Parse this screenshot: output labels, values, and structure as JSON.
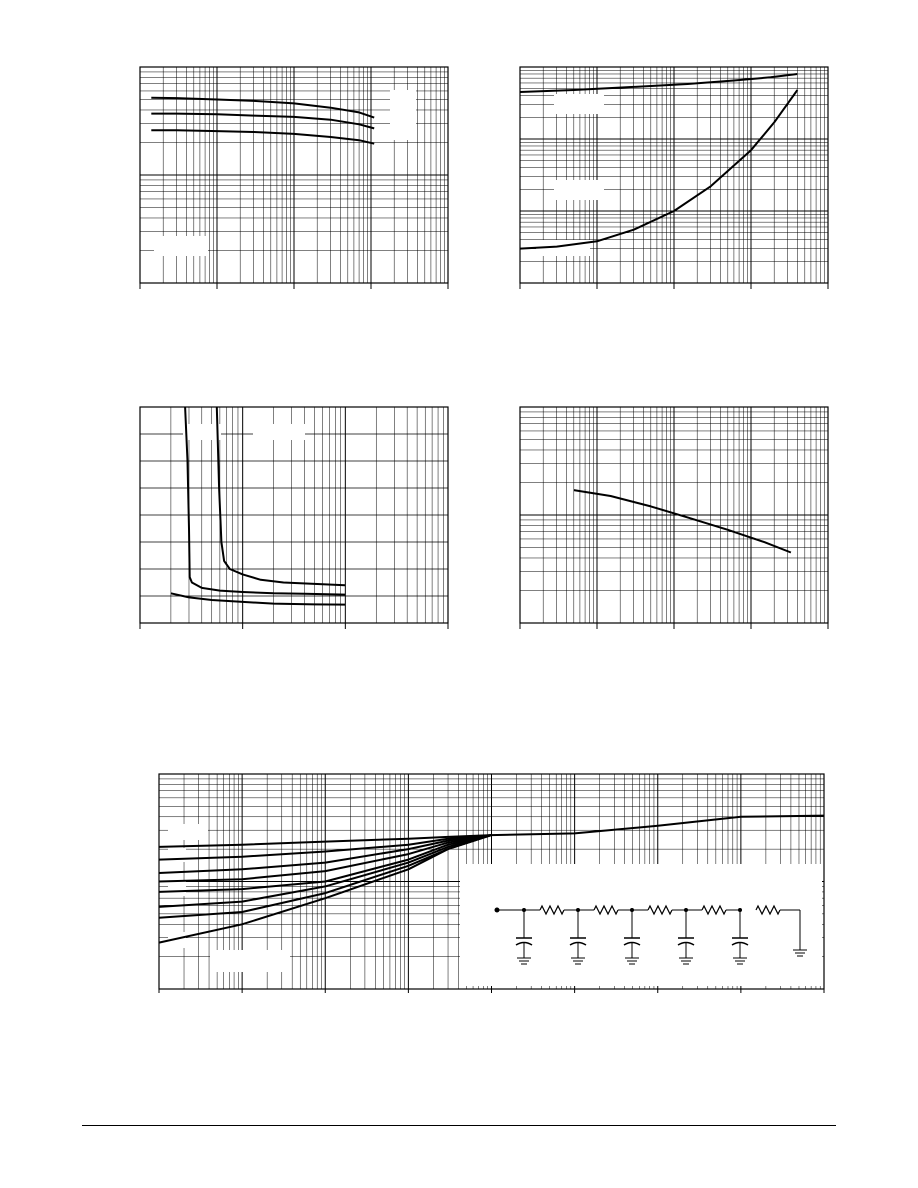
{
  "colors": {
    "ink": "#000000",
    "background": "#ffffff"
  },
  "chart_data": [
    {
      "id": "chart-top-left",
      "type": "line",
      "x_scale": "log",
      "xlim": [
        1,
        10000
      ],
      "y_scale": "log",
      "ylim": [
        1,
        100
      ],
      "grid": true,
      "series": [
        {
          "x": [
            1.4,
            3,
            10,
            30,
            100,
            300,
            700,
            1100
          ],
          "y": [
            52,
            51.5,
            50,
            48.5,
            46,
            42,
            38,
            34
          ]
        },
        {
          "x": [
            1.4,
            3,
            10,
            30,
            100,
            300,
            700,
            1100
          ],
          "y": [
            37,
            37,
            36.5,
            35.5,
            34.5,
            32.5,
            29.5,
            27
          ]
        },
        {
          "x": [
            1.4,
            3,
            10,
            30,
            100,
            300,
            700,
            1100
          ],
          "y": [
            26,
            26,
            25.5,
            25,
            24,
            22.5,
            21,
            19.5
          ]
        }
      ]
    },
    {
      "id": "chart-top-right",
      "type": "line",
      "x_scale": "log",
      "xlim": [
        1,
        10000
      ],
      "y_scale": "log",
      "ylim": [
        1,
        1000
      ],
      "grid": true,
      "series": [
        {
          "x": [
            1,
            5,
            30,
            150,
            600,
            1800,
            4000
          ],
          "y": [
            450,
            480,
            530,
            580,
            650,
            720,
            800
          ]
        },
        {
          "x": [
            1,
            3,
            10,
            30,
            100,
            300,
            1000,
            2000,
            4000
          ],
          "y": [
            3,
            3.2,
            3.8,
            5.5,
            10,
            22,
            70,
            170,
            480
          ]
        }
      ]
    },
    {
      "id": "chart-middle-left",
      "type": "line",
      "x_scale": "log",
      "xlim": [
        1,
        1000
      ],
      "y_scale": "linear",
      "ylim": [
        0,
        8
      ],
      "grid": true,
      "series": [
        {
          "x": [
            2.75,
            2.9,
            3,
            3.05,
            3.2,
            4,
            6,
            10,
            20,
            40,
            100
          ],
          "y": [
            8,
            6,
            3.5,
            1.7,
            1.5,
            1.3,
            1.2,
            1.15,
            1.1,
            1.08,
            1.05
          ]
        },
        {
          "x": [
            5.6,
            5.9,
            6.2,
            6.6,
            7.5,
            10,
            15,
            25,
            50,
            100
          ],
          "y": [
            8,
            5,
            3,
            2.3,
            2,
            1.8,
            1.6,
            1.5,
            1.45,
            1.4
          ]
        },
        {
          "x": [
            2,
            3,
            5,
            10,
            20,
            50,
            100
          ],
          "y": [
            1.1,
            0.95,
            0.85,
            0.78,
            0.72,
            0.69,
            0.68
          ]
        }
      ]
    },
    {
      "id": "chart-middle-right",
      "type": "line",
      "x_scale": "log",
      "xlim": [
        1,
        10000
      ],
      "y_scale": "log",
      "ylim": [
        0.1,
        10
      ],
      "grid": true,
      "series": [
        {
          "x": [
            5,
            15,
            50,
            150,
            500,
            1500,
            3300
          ],
          "y": [
            1.7,
            1.5,
            1.2,
            0.95,
            0.73,
            0.56,
            0.45
          ]
        }
      ]
    },
    {
      "id": "chart-bottom",
      "type": "line",
      "x_scale": "log",
      "xlim": [
        1e-05,
        1000
      ],
      "y_scale": "log",
      "ylim": [
        0.01,
        1
      ],
      "grid": true,
      "series": [
        {
          "x": [
            1e-05,
            0.0001,
            0.001,
            0.01,
            0.03,
            0.1,
            1,
            10,
            100,
            1000
          ],
          "y": [
            0.21,
            0.22,
            0.235,
            0.25,
            0.26,
            0.27,
            0.28,
            0.33,
            0.4,
            0.41
          ]
        },
        {
          "x": [
            1e-05,
            0.0001,
            0.001,
            0.01,
            0.03,
            0.1
          ],
          "y": [
            0.16,
            0.17,
            0.19,
            0.22,
            0.25,
            0.27
          ]
        },
        {
          "x": [
            1e-05,
            0.0001,
            0.001,
            0.01,
            0.03,
            0.1
          ],
          "y": [
            0.12,
            0.13,
            0.15,
            0.2,
            0.24,
            0.27
          ]
        },
        {
          "x": [
            1e-05,
            0.0001,
            0.001,
            0.01,
            0.03,
            0.1
          ],
          "y": [
            0.1,
            0.105,
            0.125,
            0.18,
            0.23,
            0.27
          ]
        },
        {
          "x": [
            1e-05,
            0.0001,
            0.001,
            0.01,
            0.03,
            0.1
          ],
          "y": [
            0.08,
            0.085,
            0.1,
            0.16,
            0.22,
            0.27
          ]
        },
        {
          "x": [
            1e-05,
            0.0001,
            0.001,
            0.01,
            0.03,
            0.1
          ],
          "y": [
            0.058,
            0.065,
            0.09,
            0.15,
            0.21,
            0.27
          ]
        },
        {
          "x": [
            1e-05,
            0.0001,
            0.001,
            0.01,
            0.03,
            0.1
          ],
          "y": [
            0.046,
            0.052,
            0.078,
            0.14,
            0.2,
            0.27
          ]
        },
        {
          "x": [
            1e-05,
            0.0001,
            0.001,
            0.01,
            0.03,
            0.1
          ],
          "y": [
            0.027,
            0.04,
            0.07,
            0.13,
            0.2,
            0.27
          ]
        }
      ],
      "inset": {
        "type": "rc-ladder-schematic",
        "stages": 5,
        "ground": true
      }
    }
  ]
}
